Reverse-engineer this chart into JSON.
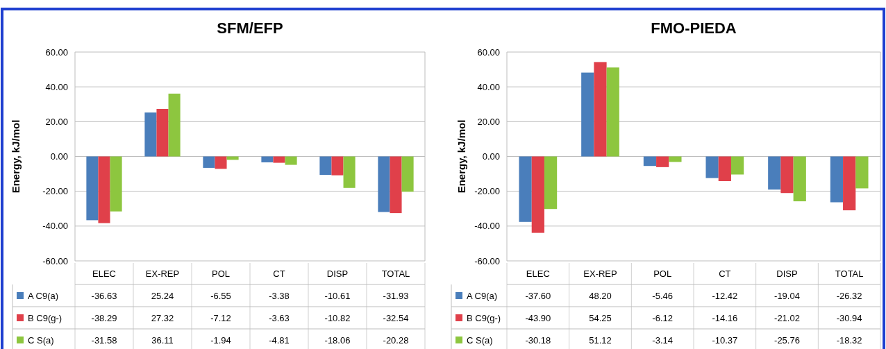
{
  "chart_data": [
    {
      "type": "bar",
      "title": "SFM/EFP",
      "ylabel": "Energy, kJ/mol",
      "categories": [
        "ELEC",
        "EX-REP",
        "POL",
        "CT",
        "DISP",
        "TOTAL"
      ],
      "ylim": [
        -60,
        60
      ],
      "yticks": [
        {
          "value": -60,
          "label": "-60.00"
        },
        {
          "value": -40,
          "label": "-40.00"
        },
        {
          "value": -20,
          "label": "-20.00"
        },
        {
          "value": 0,
          "label": "0.00"
        },
        {
          "value": 20,
          "label": "20.00"
        },
        {
          "value": 40,
          "label": "40.00"
        },
        {
          "value": 60,
          "label": "60.00"
        }
      ],
      "grid": "y",
      "legend": "bottom",
      "series": [
        {
          "name": "A C9(a)",
          "color": "#4a7ebb",
          "values": [
            -36.63,
            25.24,
            -6.55,
            -3.38,
            -10.61,
            -31.93
          ],
          "value_labels": [
            "-36.63",
            "25.24",
            "-6.55",
            "-3.38",
            "-10.61",
            "-31.93"
          ]
        },
        {
          "name": "B C9(g-)",
          "color": "#e0404a",
          "values": [
            -38.29,
            27.32,
            -7.12,
            -3.63,
            -10.82,
            -32.54
          ],
          "value_labels": [
            "-38.29",
            "27.32",
            "-7.12",
            "-3.63",
            "-10.82",
            "-32.54"
          ]
        },
        {
          "name": "C S(a)",
          "color": "#8dc63f",
          "values": [
            -31.58,
            36.11,
            -1.94,
            -4.81,
            -18.06,
            -20.28
          ],
          "value_labels": [
            "-31.58",
            "36.11",
            "-1.94",
            "-4.81",
            "-18.06",
            "-20.28"
          ]
        }
      ]
    },
    {
      "type": "bar",
      "title": "FMO-PIEDA",
      "ylabel": "Energy, kJ/mol",
      "categories": [
        "ELEC",
        "EX-REP",
        "POL",
        "CT",
        "DISP",
        "TOTAL"
      ],
      "ylim": [
        -60,
        60
      ],
      "yticks": [
        {
          "value": -60,
          "label": "-60.00"
        },
        {
          "value": -40,
          "label": "-40.00"
        },
        {
          "value": -20,
          "label": "-20.00"
        },
        {
          "value": 0,
          "label": "0.00"
        },
        {
          "value": 20,
          "label": "20.00"
        },
        {
          "value": 40,
          "label": "40.00"
        },
        {
          "value": 60,
          "label": "60.00"
        }
      ],
      "grid": "y",
      "legend": "bottom",
      "series": [
        {
          "name": "A C9(a)",
          "color": "#4a7ebb",
          "values": [
            -37.6,
            48.2,
            -5.46,
            -12.42,
            -19.04,
            -26.32
          ],
          "value_labels": [
            "-37.60",
            "48.20",
            "-5.46",
            "-12.42",
            "-19.04",
            "-26.32"
          ]
        },
        {
          "name": "B C9(g-)",
          "color": "#e0404a",
          "values": [
            -43.9,
            54.25,
            -6.12,
            -14.16,
            -21.02,
            -30.94
          ],
          "value_labels": [
            "-43.90",
            "54.25",
            "-6.12",
            "-14.16",
            "-21.02",
            "-30.94"
          ]
        },
        {
          "name": "C S(a)",
          "color": "#8dc63f",
          "values": [
            -30.18,
            51.12,
            -3.14,
            -10.37,
            -25.76,
            -18.32
          ],
          "value_labels": [
            "-30.18",
            "51.12",
            "-3.14",
            "-10.37",
            "-25.76",
            "-18.32"
          ]
        }
      ]
    }
  ]
}
